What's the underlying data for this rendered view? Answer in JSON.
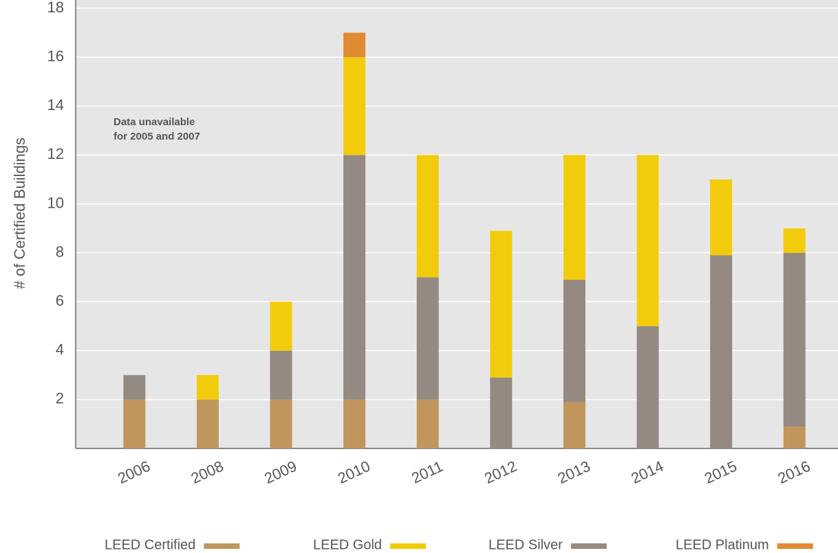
{
  "chart_data": {
    "type": "stacked_bar",
    "y_label": "# of Certified Buildings",
    "annotation": [
      "Data unavailable",
      "for 2005 and 2007"
    ],
    "categories": [
      "2006",
      "2008",
      "2009",
      "2010",
      "2011",
      "2012",
      "2013",
      "2014",
      "2015",
      "2016"
    ],
    "series": [
      {
        "name": "LEED Certified",
        "color": "#c0965c",
        "values": [
          2,
          2,
          2,
          2,
          2,
          0,
          1.9,
          0,
          0,
          0.9
        ]
      },
      {
        "name": "LEED Gold",
        "color": "#f2cc0c",
        "values": [
          0,
          1,
          2,
          4,
          5,
          6,
          5.1,
          7,
          3.1,
          1
        ]
      },
      {
        "name": "LEED Silver",
        "color": "#948a82",
        "values": [
          1,
          0,
          2,
          10,
          5,
          2.9,
          5,
          5,
          7.9,
          7.1
        ]
      },
      {
        "name": "LEED Platinum",
        "color": "#e08a34",
        "values": [
          0,
          0,
          0,
          1,
          0,
          0,
          0,
          0,
          0,
          0
        ]
      }
    ],
    "ylim": [
      0,
      18
    ],
    "yticks": [
      2,
      4,
      6,
      8,
      10,
      12,
      14,
      16,
      18
    ],
    "grid": true
  }
}
